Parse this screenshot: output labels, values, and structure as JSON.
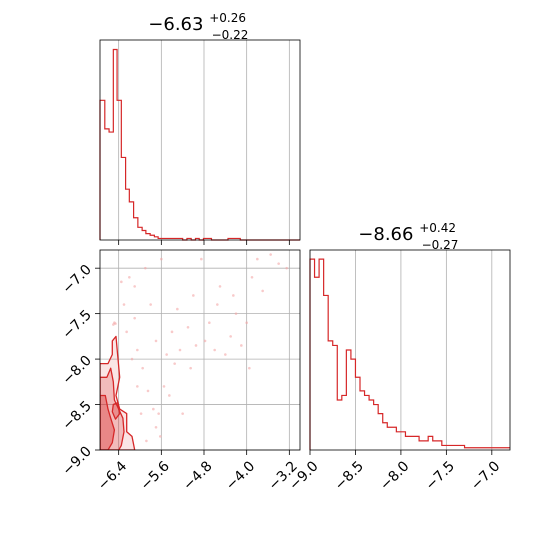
{
  "chart_data": [
    {
      "panel": "top-left",
      "type": "histogram",
      "title": {
        "median": "−6.63",
        "upper": "+0.26",
        "lower": "−0.22"
      },
      "xlim": [
        -6.75,
        -3.0
      ],
      "x_ticks": [
        -6.4,
        -5.6,
        -4.8,
        -4.0,
        -3.2
      ],
      "y_ticks_shown": false,
      "grid": true,
      "color": "#d62728",
      "bin_edges": [
        -6.75,
        -6.66,
        -6.58,
        -6.5,
        -6.43,
        -6.35,
        -6.27,
        -6.2,
        -6.12,
        -6.04,
        -5.96,
        -5.89,
        -5.81,
        -5.73,
        -5.66,
        -5.58,
        -5.5,
        -5.42,
        -5.35,
        -5.27,
        -5.2,
        -5.12,
        -5.04,
        -4.96,
        -4.89,
        -4.81,
        -4.73,
        -4.66,
        -4.58,
        -4.5,
        -4.42,
        -4.35,
        -4.27,
        -4.2,
        -4.12,
        -4.04,
        -3.96,
        -3.89,
        -3.81,
        -3.73,
        -3.66,
        -3.58,
        -3.5,
        -3.43,
        -3.35,
        -3.27,
        -3.2,
        -3.12,
        -3.04,
        -3.0
      ],
      "counts": [
        88,
        70,
        68,
        120,
        88,
        52,
        32,
        24,
        14,
        8,
        6,
        4,
        3,
        2,
        1,
        1,
        1,
        1,
        1,
        1,
        0,
        1,
        0,
        1,
        0,
        1,
        1,
        0,
        0,
        0,
        0,
        1,
        1,
        1,
        0,
        0,
        0,
        0,
        0,
        0,
        0,
        0,
        0,
        0,
        0,
        0,
        0,
        0,
        0
      ],
      "ymax": 126
    },
    {
      "panel": "bottom-left",
      "type": "contour-scatter",
      "xlim": [
        -6.75,
        -3.0
      ],
      "ylim": [
        -9.0,
        -6.8
      ],
      "x_ticks": [
        -6.4,
        -5.6,
        -4.8,
        -4.0,
        -3.2
      ],
      "y_ticks": [
        -9.0,
        -8.5,
        -8.0,
        -7.5,
        -7.0
      ],
      "grid": true,
      "color": "#d62728",
      "contours": [
        {
          "level": "outer",
          "points": [
            [
              -6.75,
              -8.05
            ],
            [
              -6.6,
              -8.05
            ],
            [
              -6.52,
              -7.95
            ],
            [
              -6.52,
              -7.8
            ],
            [
              -6.45,
              -7.75
            ],
            [
              -6.42,
              -7.95
            ],
            [
              -6.38,
              -8.2
            ],
            [
              -6.45,
              -8.4
            ],
            [
              -6.38,
              -8.55
            ],
            [
              -6.25,
              -8.6
            ],
            [
              -6.25,
              -8.8
            ],
            [
              -6.15,
              -8.85
            ],
            [
              -6.1,
              -9.0
            ],
            [
              -6.75,
              -9.0
            ]
          ]
        },
        {
          "level": "middle",
          "points": [
            [
              -6.75,
              -8.2
            ],
            [
              -6.62,
              -8.2
            ],
            [
              -6.55,
              -8.1
            ],
            [
              -6.5,
              -8.25
            ],
            [
              -6.48,
              -8.45
            ],
            [
              -6.4,
              -8.55
            ],
            [
              -6.32,
              -8.65
            ],
            [
              -6.3,
              -8.8
            ],
            [
              -6.35,
              -8.95
            ],
            [
              -6.4,
              -9.0
            ],
            [
              -6.75,
              -9.0
            ]
          ]
        },
        {
          "level": "inner",
          "points": [
            [
              -6.75,
              -8.4
            ],
            [
              -6.65,
              -8.4
            ],
            [
              -6.6,
              -8.55
            ],
            [
              -6.55,
              -8.65
            ],
            [
              -6.48,
              -8.78
            ],
            [
              -6.52,
              -8.92
            ],
            [
              -6.6,
              -9.0
            ],
            [
              -6.75,
              -9.0
            ]
          ]
        },
        {
          "level": "island",
          "points": [
            [
              -6.5,
              -8.5
            ],
            [
              -6.42,
              -8.48
            ],
            [
              -6.38,
              -8.6
            ],
            [
              -6.46,
              -8.66
            ],
            [
              -6.52,
              -8.58
            ]
          ]
        }
      ],
      "points": [
        [
          -6.48,
          -7.6
        ],
        [
          -6.46,
          -7.61
        ],
        [
          -6.5,
          -7.62
        ],
        [
          -6.3,
          -7.4
        ],
        [
          -6.2,
          -7.1
        ],
        [
          -6.1,
          -7.55
        ],
        [
          -6.05,
          -7.9
        ],
        [
          -5.95,
          -8.1
        ],
        [
          -5.85,
          -8.35
        ],
        [
          -5.75,
          -8.55
        ],
        [
          -5.7,
          -8.75
        ],
        [
          -5.62,
          -8.85
        ],
        [
          -5.55,
          -8.3
        ],
        [
          -5.5,
          -7.95
        ],
        [
          -5.4,
          -7.7
        ],
        [
          -5.3,
          -7.45
        ],
        [
          -5.2,
          -8.6
        ],
        [
          -5.1,
          -7.65
        ],
        [
          -5.0,
          -7.3
        ],
        [
          -4.85,
          -6.9
        ],
        [
          -4.78,
          -7.8
        ],
        [
          -4.7,
          -7.6
        ],
        [
          -4.55,
          -7.4
        ],
        [
          -4.4,
          -7.95
        ],
        [
          -4.3,
          -7.75
        ],
        [
          -4.2,
          -7.5
        ],
        [
          -4.0,
          -7.6
        ],
        [
          -3.9,
          -7.1
        ],
        [
          -3.8,
          -6.9
        ],
        [
          -3.55,
          -6.85
        ],
        [
          -3.4,
          -6.95
        ],
        [
          -3.25,
          -7.0
        ],
        [
          -6.1,
          -7.2
        ],
        [
          -5.9,
          -7.0
        ],
        [
          -5.6,
          -6.9
        ],
        [
          -5.8,
          -7.4
        ],
        [
          -5.7,
          -7.8
        ],
        [
          -6.35,
          -7.15
        ],
        [
          -6.25,
          -7.7
        ],
        [
          -6.15,
          -8.0
        ],
        [
          -6.05,
          -8.3
        ],
        [
          -5.98,
          -8.6
        ],
        [
          -5.88,
          -8.9
        ],
        [
          -5.65,
          -8.6
        ],
        [
          -5.45,
          -8.4
        ],
        [
          -5.35,
          -8.05
        ],
        [
          -5.25,
          -7.9
        ],
        [
          -5.05,
          -8.1
        ],
        [
          -4.95,
          -7.85
        ],
        [
          -4.6,
          -7.9
        ],
        [
          -4.5,
          -7.2
        ],
        [
          -4.25,
          -7.3
        ],
        [
          -4.1,
          -7.85
        ],
        [
          -3.95,
          -8.1
        ],
        [
          -3.7,
          -7.25
        ]
      ]
    },
    {
      "panel": "bottom-right",
      "type": "histogram",
      "title": {
        "median": "−8.66",
        "upper": "+0.42",
        "lower": "−0.27"
      },
      "xlim": [
        -9.0,
        -6.8
      ],
      "x_ticks": [
        -9.0,
        -8.5,
        -8.0,
        -7.5,
        -7.0
      ],
      "y_ticks_shown": false,
      "grid": true,
      "color": "#d62728",
      "bin_edges": [
        -9.0,
        -8.95,
        -8.9,
        -8.85,
        -8.8,
        -8.75,
        -8.7,
        -8.65,
        -8.6,
        -8.55,
        -8.5,
        -8.45,
        -8.4,
        -8.35,
        -8.3,
        -8.25,
        -8.2,
        -8.15,
        -8.1,
        -8.05,
        -8.0,
        -7.95,
        -7.9,
        -7.85,
        -7.8,
        -7.75,
        -7.7,
        -7.65,
        -7.6,
        -7.55,
        -7.5,
        -7.45,
        -7.4,
        -7.35,
        -7.3,
        -7.25,
        -7.2,
        -7.15,
        -7.1,
        -7.05,
        -7.0,
        -6.95,
        -6.9,
        -6.85,
        -6.8
      ],
      "counts": [
        42,
        38,
        42,
        34,
        24,
        23,
        11,
        12,
        22,
        20,
        16,
        13,
        12,
        11,
        10,
        8,
        6,
        5,
        5,
        4,
        4,
        3,
        3,
        3,
        2,
        2,
        3,
        2,
        2,
        1,
        1,
        1,
        1,
        1,
        0.5,
        0.5,
        0.5,
        0.5,
        0.5,
        0.5,
        0.5,
        0.5,
        0.5,
        0.5
      ],
      "ymax": 44
    }
  ]
}
